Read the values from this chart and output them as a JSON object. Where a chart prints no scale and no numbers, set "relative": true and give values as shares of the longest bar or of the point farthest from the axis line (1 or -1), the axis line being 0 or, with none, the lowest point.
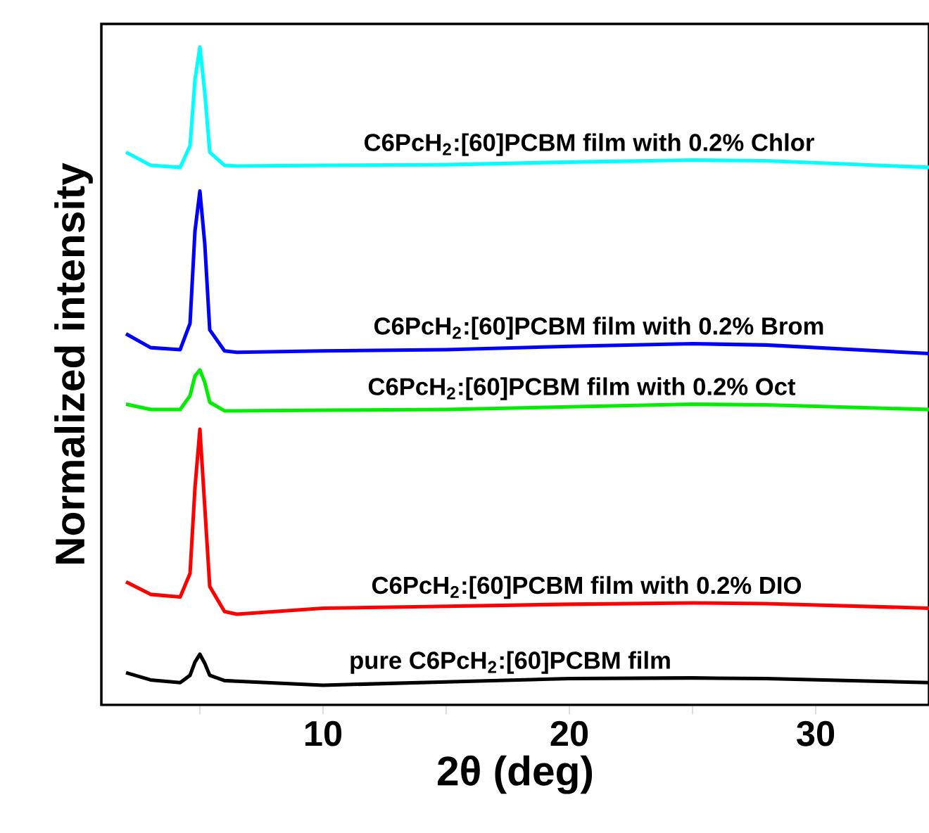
{
  "chart_data": {
    "type": "line",
    "relative": true,
    "xlabel": "2θ (deg)",
    "ylabel": "Normalized intensity",
    "xlim": [
      1,
      34.6
    ],
    "xticks": [
      {
        "value": 5,
        "label": null
      },
      10,
      {
        "value": 15,
        "label": null
      },
      20,
      {
        "value": 25,
        "label": null
      },
      30
    ],
    "tick_labels": "x",
    "grid": false,
    "marker": "none",
    "line_style": "solid",
    "x": [
      2,
      3,
      4.2,
      4.6,
      4.8,
      5,
      5.2,
      5.4,
      6,
      6.5,
      10,
      15,
      20,
      25,
      28,
      34.6
    ],
    "series": [
      {
        "color": "#000000",
        "values": [
          0.049,
          0.038,
          0.034,
          0.045,
          0.065,
          0.077,
          0.063,
          0.045,
          0.037,
          0.036,
          0.03,
          0.035,
          0.04,
          0.041,
          0.04,
          0.034
        ]
      },
      {
        "color": "#ff0000",
        "values": [
          0.187,
          0.168,
          0.164,
          0.2,
          0.33,
          0.419,
          0.3,
          0.18,
          0.142,
          0.138,
          0.147,
          0.15,
          0.153,
          0.155,
          0.154,
          0.147
        ]
      },
      {
        "color": "#00ee00",
        "values": [
          0.457,
          0.449,
          0.449,
          0.47,
          0.5,
          0.509,
          0.49,
          0.46,
          0.447,
          0.447,
          0.448,
          0.449,
          0.453,
          0.457,
          0.456,
          0.449
        ]
      },
      {
        "color": "#0000ff",
        "values": [
          0.564,
          0.543,
          0.54,
          0.58,
          0.72,
          0.781,
          0.7,
          0.57,
          0.538,
          0.536,
          0.538,
          0.54,
          0.545,
          0.549,
          0.547,
          0.534
        ]
      },
      {
        "color": "#00ffff",
        "values": [
          0.84,
          0.82,
          0.817,
          0.85,
          0.95,
          1.0,
          0.93,
          0.84,
          0.82,
          0.819,
          0.82,
          0.821,
          0.825,
          0.828,
          0.827,
          0.817
        ]
      }
    ],
    "annotations": [
      {
        "text": "pure C6PcH$_{2}$:[60]PCBM film",
        "x": 17.6,
        "y": 0.041
      },
      {
        "text": "C6PcH$_{2}$:[60]PCBM film with 0.2% DIO",
        "x": 20.7,
        "y": 0.155
      },
      {
        "text": "C6PcH$_{2}$:[60]PCBM film with 0.2% Oct",
        "x": 20.5,
        "y": 0.457
      },
      {
        "text": "C6PcH$_{2}$:[60]PCBM film with 0.2% Brom",
        "x": 21.2,
        "y": 0.549
      },
      {
        "text": "C6PcH$_{2}$:[60]PCBM film with 0.2% Chlor",
        "x": 20.8,
        "y": 0.828
      }
    ]
  }
}
